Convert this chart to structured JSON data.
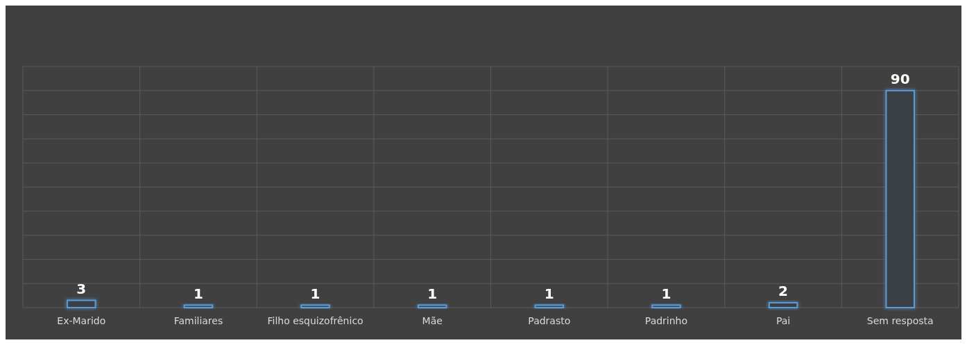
{
  "chart_data": {
    "type": "bar",
    "categories": [
      "Ex-Marido",
      "Familiares",
      "Filho esquizofrênico",
      "Mãe",
      "Padrasto",
      "Padrinho",
      "Pai",
      "Sem resposta"
    ],
    "values": [
      3,
      1,
      1,
      1,
      1,
      1,
      2,
      90
    ],
    "color": "#5b9bd5",
    "data_labels": true,
    "ylim": [
      0,
      100
    ],
    "yticks": [
      {
        "value": 0,
        "label": null
      },
      {
        "value": 10,
        "label": null
      },
      {
        "value": 20,
        "label": null
      },
      {
        "value": 30,
        "label": null
      },
      {
        "value": 40,
        "label": null
      },
      {
        "value": 50,
        "label": null
      },
      {
        "value": 60,
        "label": null
      },
      {
        "value": 70,
        "label": null
      },
      {
        "value": 80,
        "label": null
      },
      {
        "value": 90,
        "label": null
      },
      {
        "value": 100,
        "label": null
      }
    ],
    "tick_labels": "x",
    "grid": true
  }
}
